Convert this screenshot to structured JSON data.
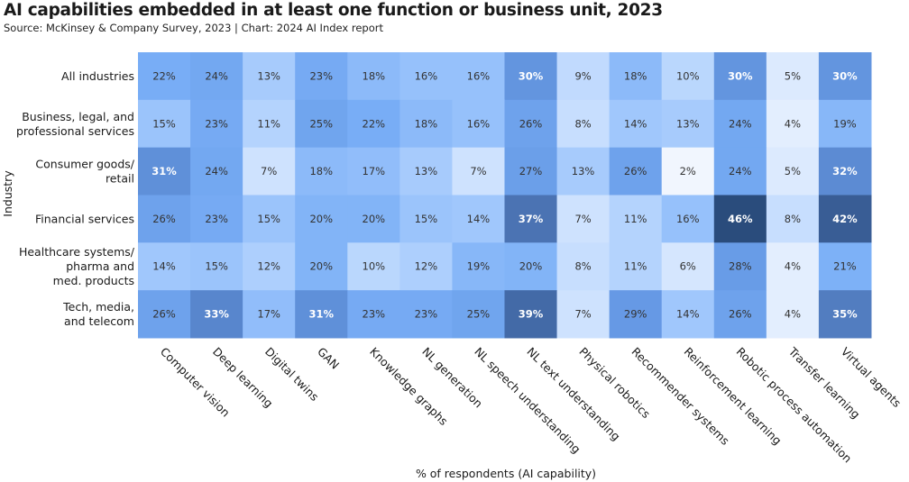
{
  "chart_data": {
    "type": "heatmap",
    "title": "AI capabilities embedded in at least one function or business unit, 2023",
    "subtitle": "Source: McKinsey & Company Survey, 2023 | Chart: 2024 AI Index report",
    "xlabel": "% of respondents (AI capability)",
    "ylabel": "Industry",
    "value_format": "percent",
    "rows": [
      "All industries",
      "Business, legal, and professional services",
      "Consumer goods/ retail",
      "Financial services",
      "Healthcare systems/ pharma and med. products",
      "Tech, media, and telecom"
    ],
    "columns": [
      "Computer vision",
      "Deep learning",
      "Digital twins",
      "GAN",
      "Knowledge graphs",
      "NL generation",
      "NL speech understanding",
      "NL text understanding",
      "Physical robotics",
      "Recommender systems",
      "Reinforcement learning",
      "Robotic process automation",
      "Transfer learning",
      "Virtual agents"
    ],
    "values": [
      [
        22,
        24,
        13,
        23,
        18,
        16,
        16,
        30,
        9,
        18,
        10,
        30,
        5,
        30
      ],
      [
        15,
        23,
        11,
        25,
        22,
        18,
        16,
        26,
        8,
        14,
        13,
        24,
        4,
        19
      ],
      [
        31,
        24,
        7,
        18,
        17,
        13,
        7,
        27,
        13,
        26,
        2,
        24,
        5,
        32
      ],
      [
        26,
        23,
        15,
        20,
        20,
        15,
        14,
        37,
        7,
        11,
        16,
        46,
        8,
        42
      ],
      [
        14,
        15,
        12,
        20,
        10,
        12,
        19,
        20,
        8,
        11,
        6,
        28,
        4,
        21
      ],
      [
        26,
        33,
        17,
        31,
        23,
        23,
        25,
        39,
        7,
        29,
        14,
        26,
        4,
        35
      ]
    ],
    "color_scale": {
      "low": "#f1f6fe",
      "high": "#2a4c7c"
    }
  }
}
